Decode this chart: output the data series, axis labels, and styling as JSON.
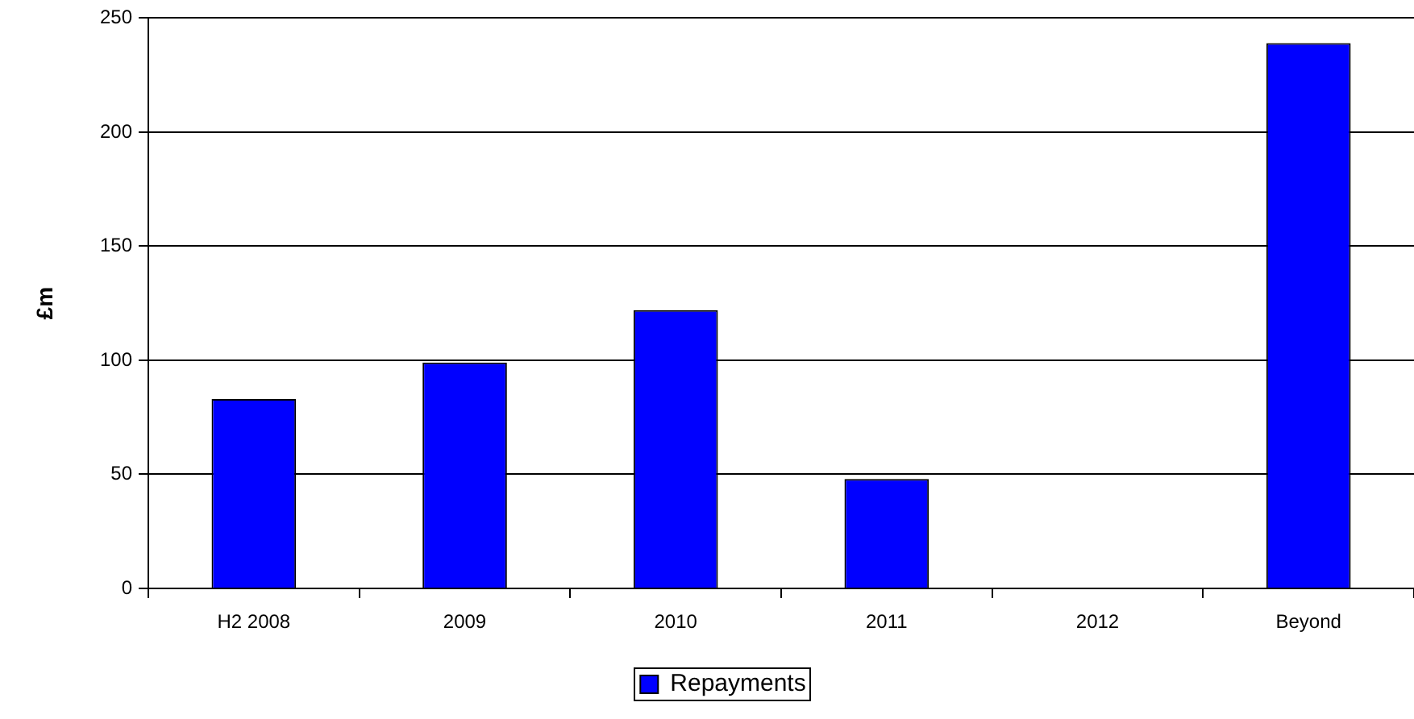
{
  "chart_data": {
    "type": "bar",
    "ylabel": "£m",
    "categories": [
      "H2 2008",
      "2009",
      "2010",
      "2011",
      "2012",
      "Beyond"
    ],
    "series": [
      {
        "name": "Repayments",
        "color": "#0000ff",
        "values": [
          83,
          99,
          122,
          48,
          0,
          239
        ]
      }
    ],
    "ylim": [
      0,
      250
    ],
    "yticks": [
      0,
      50,
      100,
      150,
      200,
      250
    ],
    "grid": "y",
    "legend": "bottom"
  }
}
